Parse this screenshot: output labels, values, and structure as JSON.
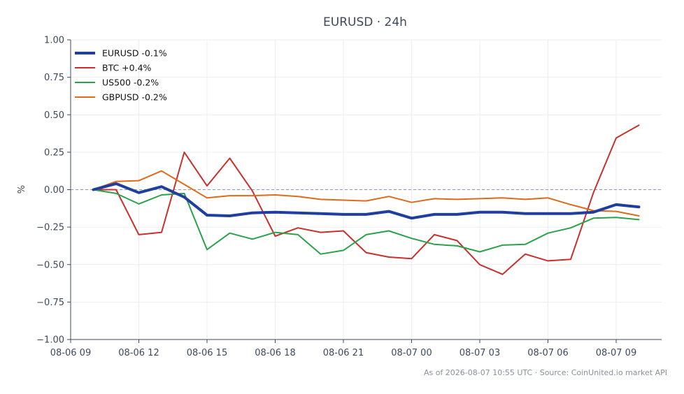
{
  "chart_data": {
    "type": "line",
    "title": "EURUSD · 24h",
    "ylabel": "%",
    "xlabel": "",
    "ylim": [
      -1.0,
      1.0
    ],
    "xlim": [
      -1,
      25
    ],
    "y_ticks": [
      {
        "value": 1.0,
        "label": "1.00"
      },
      {
        "value": 0.75,
        "label": "0.75"
      },
      {
        "value": 0.5,
        "label": "0.50"
      },
      {
        "value": 0.25,
        "label": "0.25"
      },
      {
        "value": 0.0,
        "label": "0.00"
      },
      {
        "value": -0.25,
        "label": "−0.25"
      },
      {
        "value": -0.5,
        "label": "−0.50"
      },
      {
        "value": -0.75,
        "label": "−0.75"
      },
      {
        "value": -1.0,
        "label": "−1.00"
      }
    ],
    "x_ticks": [
      {
        "value": -1,
        "label": "08-06 09"
      },
      {
        "value": 2,
        "label": "08-06 12"
      },
      {
        "value": 5,
        "label": "08-06 15"
      },
      {
        "value": 8,
        "label": "08-06 18"
      },
      {
        "value": 11,
        "label": "08-06 21"
      },
      {
        "value": 14,
        "label": "08-07 00"
      },
      {
        "value": 17,
        "label": "08-07 03"
      },
      {
        "value": 20,
        "label": "08-07 06"
      },
      {
        "value": 23,
        "label": "08-07 09"
      }
    ],
    "x": [
      0,
      1,
      2,
      3,
      4,
      5,
      6,
      7,
      8,
      9,
      10,
      11,
      12,
      13,
      14,
      15,
      16,
      17,
      18,
      19,
      20,
      21,
      22,
      23,
      24
    ],
    "zero_line": true,
    "grid": true,
    "legend_position": "top-left",
    "series": [
      {
        "name": "EURUSD -0.1%",
        "color": "#1f3fa0",
        "width": 4,
        "values": [
          0.0,
          0.04,
          -0.02,
          0.02,
          -0.05,
          -0.17,
          -0.175,
          -0.155,
          -0.15,
          -0.155,
          -0.16,
          -0.165,
          -0.165,
          -0.145,
          -0.19,
          -0.165,
          -0.165,
          -0.15,
          -0.15,
          -0.16,
          -0.16,
          -0.16,
          -0.15,
          -0.1,
          -0.115
        ]
      },
      {
        "name": "BTC +0.4%",
        "color": "#c9302c",
        "width": 2,
        "values": [
          0.0,
          0.0,
          -0.3,
          -0.285,
          0.25,
          0.025,
          0.21,
          -0.01,
          -0.31,
          -0.255,
          -0.285,
          -0.275,
          -0.42,
          -0.45,
          -0.46,
          -0.3,
          -0.34,
          -0.5,
          -0.565,
          -0.43,
          -0.475,
          -0.465,
          -0.02,
          0.345,
          0.43
        ]
      },
      {
        "name": "US500 -0.2%",
        "color": "#2aa24a",
        "width": 2,
        "values": [
          0.0,
          -0.025,
          -0.095,
          -0.035,
          -0.025,
          -0.4,
          -0.29,
          -0.33,
          -0.285,
          -0.3,
          -0.43,
          -0.405,
          -0.3,
          -0.275,
          -0.325,
          -0.365,
          -0.375,
          -0.415,
          -0.37,
          -0.365,
          -0.29,
          -0.255,
          -0.19,
          -0.185,
          -0.2
        ]
      },
      {
        "name": "GBPUSD -0.2%",
        "color": "#e06a1a",
        "width": 2,
        "values": [
          0.0,
          0.055,
          0.06,
          0.125,
          0.035,
          -0.055,
          -0.04,
          -0.04,
          -0.035,
          -0.045,
          -0.065,
          -0.07,
          -0.075,
          -0.045,
          -0.085,
          -0.06,
          -0.065,
          -0.06,
          -0.055,
          -0.065,
          -0.055,
          -0.1,
          -0.14,
          -0.145,
          -0.175
        ]
      }
    ]
  },
  "footer": "As of 2026-08-07 10:55 UTC · Source: CoinUnited.io market API"
}
